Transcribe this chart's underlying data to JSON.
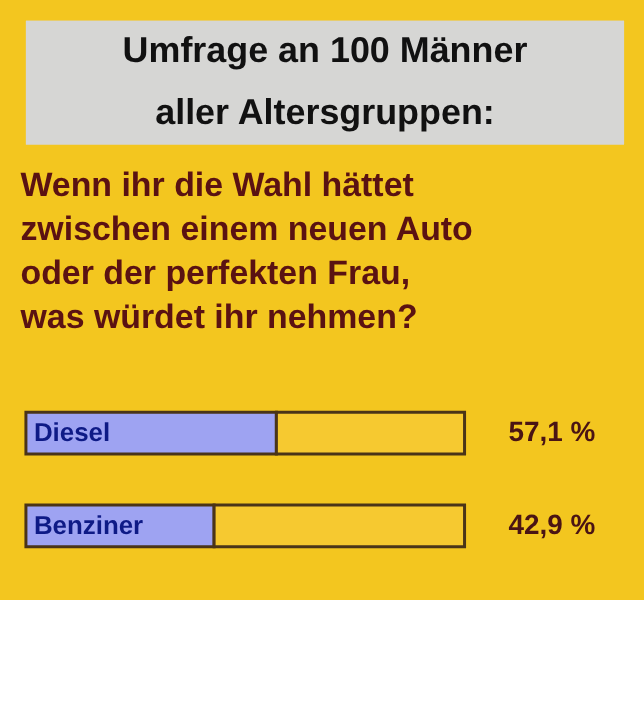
{
  "chart_data": {
    "type": "bar",
    "orientation": "horizontal",
    "stacked": true,
    "title": "Umfrage an 100 Männer\naller Altersgruppen:",
    "subtitle": "Wenn ihr die Wahl hättet\nzwischen einem neuen Auto\noder der perfekten Frau,\nwas würdet ihr nehmen?",
    "categories": [
      "Diesel",
      "Benziner"
    ],
    "series": [
      {
        "color": "#9ea3f2",
        "values": [
          57.1,
          42.9
        ],
        "value_labels": [
          "57,1 %",
          "42,9 %"
        ]
      },
      {
        "color": "#f6c930",
        "values": [
          42.9,
          57.1
        ]
      }
    ],
    "xlim": [
      0,
      100
    ],
    "tick_labels": false
  }
}
